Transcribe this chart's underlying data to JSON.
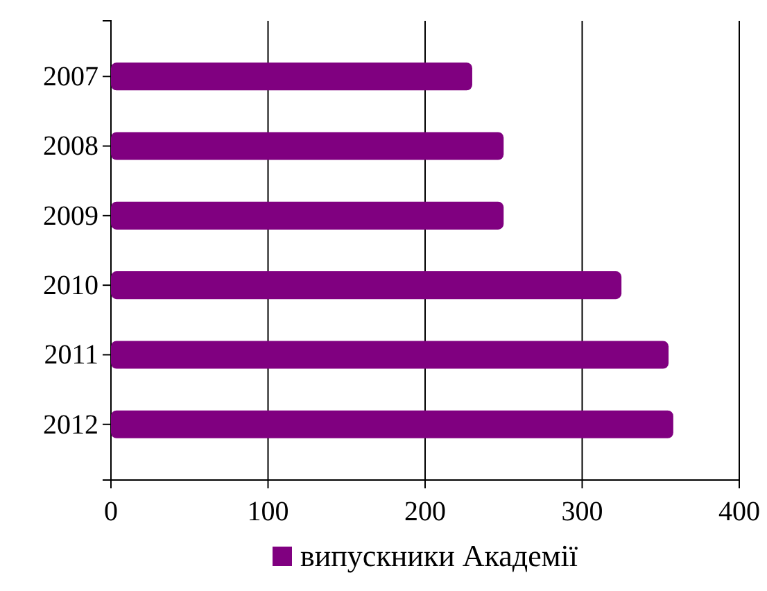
{
  "chart_data": {
    "type": "bar",
    "orientation": "horizontal",
    "categories": [
      "2007",
      "2008",
      "2009",
      "2010",
      "2011",
      "2012"
    ],
    "series": [
      {
        "name": "випускники Академії",
        "color": "#800080",
        "values": [
          230,
          250,
          250,
          325,
          355,
          358
        ]
      }
    ],
    "xlim": [
      0,
      400
    ],
    "xticks": [
      0,
      100,
      200,
      300,
      400
    ],
    "grid": "x",
    "legend": "bottom"
  }
}
